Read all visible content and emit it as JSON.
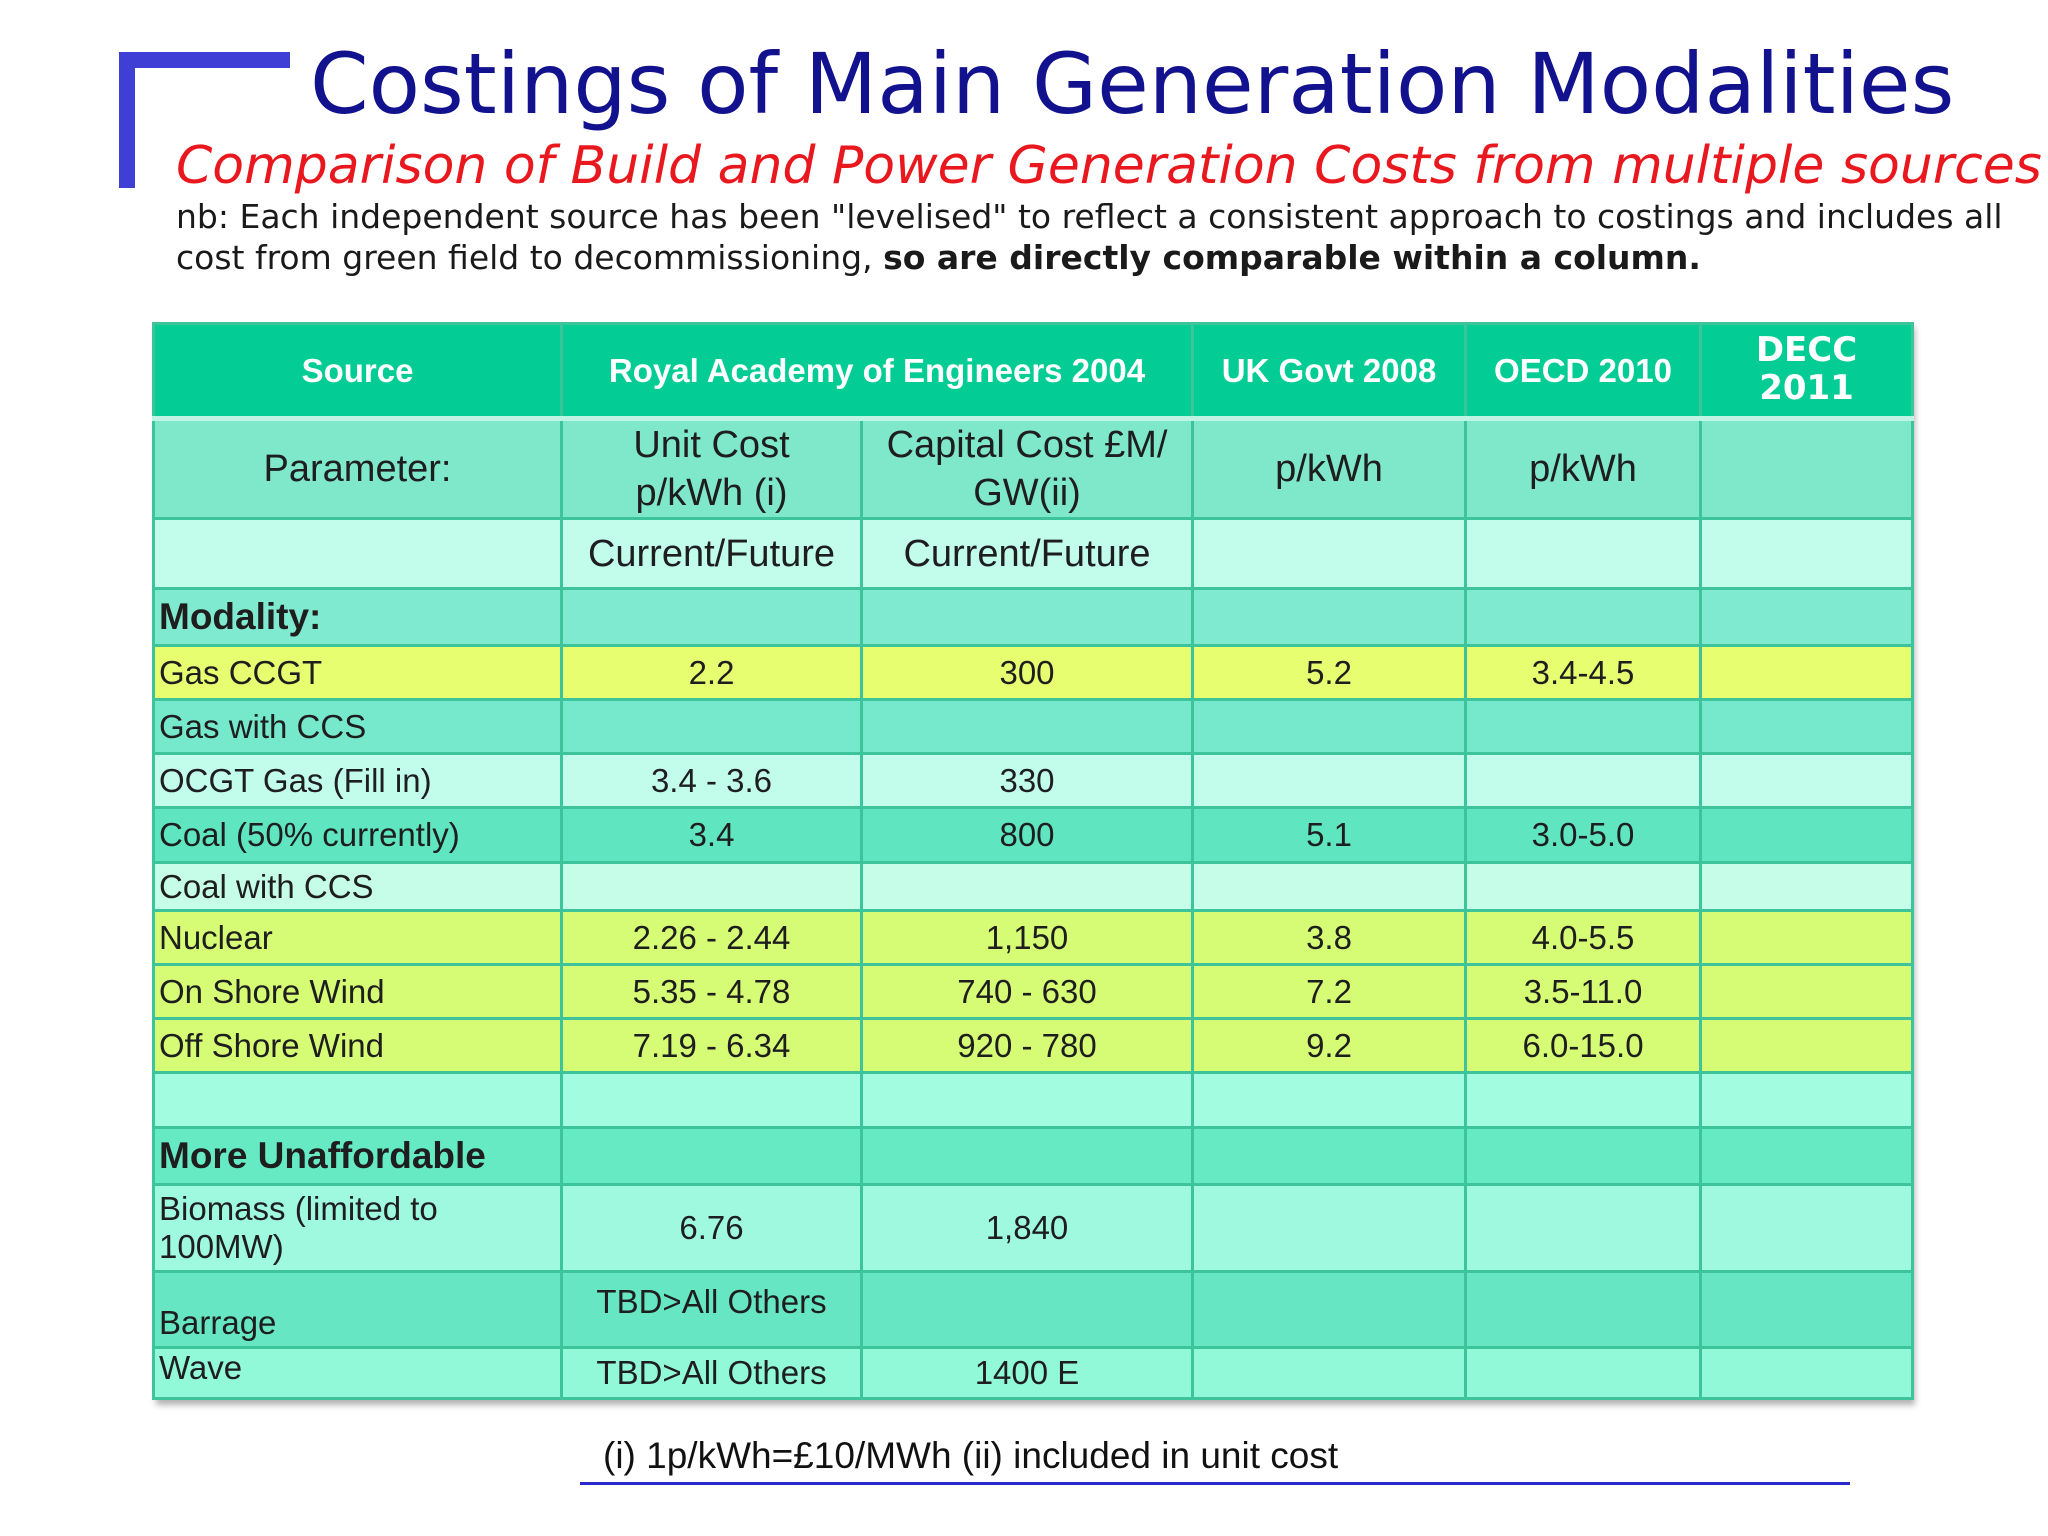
{
  "title": "Costings of Main Generation Modalities",
  "subtitle": "Comparison of Build and Power Generation Costs from multiple sources",
  "note": {
    "line1": "nb: Each independent source has been \"levelised\" to reflect a consistent approach to costings and includes all",
    "line2_plain": "cost from green field to decommissioning,",
    "line2_bold": "so are directly comparable within a column."
  },
  "table": {
    "headers": {
      "source": "Source",
      "rae": "Royal Academy of Engineers 2004",
      "ukgov": "UK Govt 2008",
      "oecd": "OECD 2010",
      "decc": "DECC 2011"
    },
    "parameter_row": {
      "label": "Parameter:",
      "unit_cost": "Unit Cost p/kWh (i)",
      "capital_cost": "Capital Cost £M/ GW(ii)",
      "ukgov": "p/kWh",
      "oecd": "p/kWh",
      "decc": ""
    },
    "current_future_row": {
      "unit_cost": "Current/Future",
      "capital_cost": "Current/Future"
    },
    "section_modality": "Modality:",
    "section_unaffordable": "More Unaffordable",
    "rows": [
      {
        "name": "Gas CCGT",
        "unit": "2.2",
        "capital": "300",
        "ukgov": "5.2",
        "oecd": "3.4-4.5",
        "decc": ""
      },
      {
        "name": "Gas with CCS",
        "unit": "",
        "capital": "",
        "ukgov": "",
        "oecd": "",
        "decc": ""
      },
      {
        "name": "OCGT Gas (Fill in)",
        "unit": "3.4 - 3.6",
        "capital": "330",
        "ukgov": "",
        "oecd": "",
        "decc": ""
      },
      {
        "name": "Coal (50% currently)",
        "unit": "3.4",
        "capital": "800",
        "ukgov": "5.1",
        "oecd": "3.0-5.0",
        "decc": ""
      },
      {
        "name": "Coal with CCS",
        "unit": "",
        "capital": "",
        "ukgov": "",
        "oecd": "",
        "decc": ""
      },
      {
        "name": "Nuclear",
        "unit": "2.26 - 2.44",
        "capital": "1,150",
        "ukgov": "3.8",
        "oecd": "4.0-5.5",
        "decc": ""
      },
      {
        "name": "On Shore Wind",
        "unit": "5.35 - 4.78",
        "capital": "740 - 630",
        "ukgov": "7.2",
        "oecd": "3.5-11.0",
        "decc": ""
      },
      {
        "name": "Off Shore Wind",
        "unit": "7.19 - 6.34",
        "capital": "920 - 780",
        "ukgov": "9.2",
        "oecd": "6.0-15.0",
        "decc": ""
      }
    ],
    "unaffordable_rows": [
      {
        "name": "Biomass (limited to 100MW)",
        "unit": "6.76",
        "capital": "1,840",
        "ukgov": "",
        "oecd": "",
        "decc": ""
      },
      {
        "name": "Barrage",
        "unit": "TBD>All Others",
        "capital": "",
        "ukgov": "",
        "oecd": "",
        "decc": ""
      },
      {
        "name": "Wave",
        "unit": "TBD>All Others",
        "capital": "1400 E",
        "ukgov": "",
        "oecd": "",
        "decc": ""
      }
    ]
  },
  "footnote": "(i) 1p/kWh=£10/MWh  (ii) included in unit cost",
  "colors": {
    "title": "#12128e",
    "subtitle": "#e8181e",
    "header": "#04cc95",
    "highlight_yellow": "#e6fe70",
    "bracket": "#3f3fd6"
  }
}
